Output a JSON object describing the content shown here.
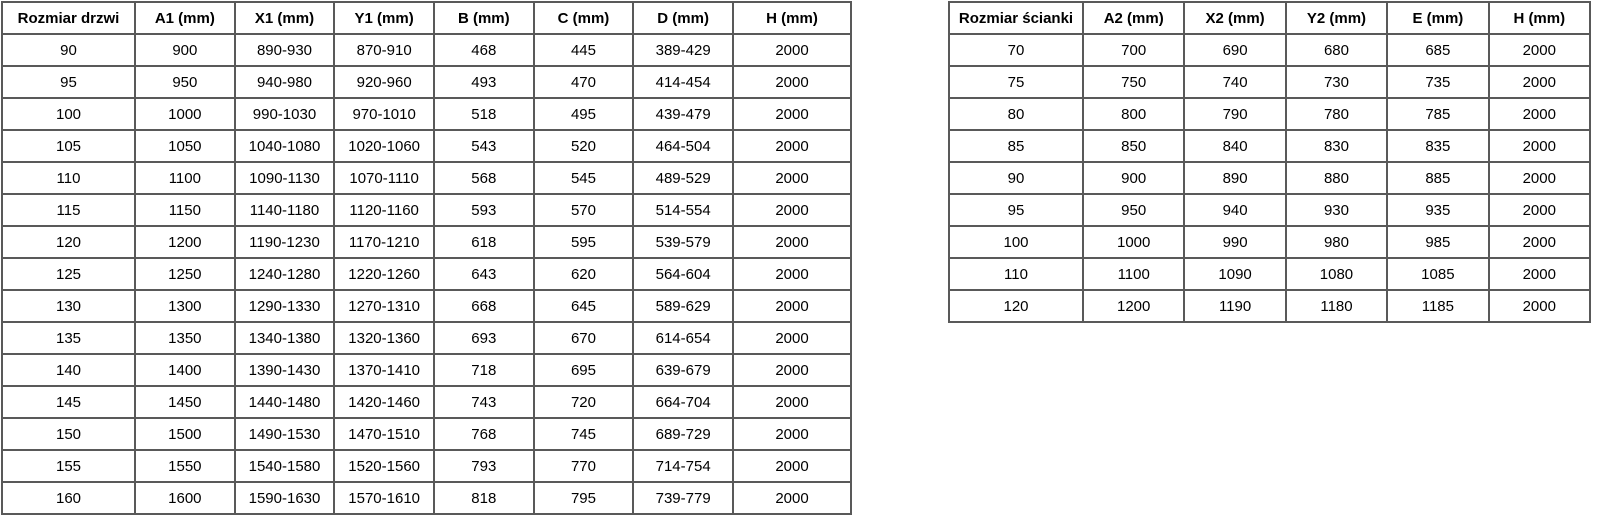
{
  "door_table": {
    "name": "door-size-table",
    "headers": [
      "Rozmiar drzwi",
      "A1 (mm)",
      "X1 (mm)",
      "Y1 (mm)",
      "B (mm)",
      "C (mm)",
      "D (mm)",
      "H (mm)"
    ],
    "rows": [
      [
        "90",
        "900",
        "890-930",
        "870-910",
        "468",
        "445",
        "389-429",
        "2000"
      ],
      [
        "95",
        "950",
        "940-980",
        "920-960",
        "493",
        "470",
        "414-454",
        "2000"
      ],
      [
        "100",
        "1000",
        "990-1030",
        "970-1010",
        "518",
        "495",
        "439-479",
        "2000"
      ],
      [
        "105",
        "1050",
        "1040-1080",
        "1020-1060",
        "543",
        "520",
        "464-504",
        "2000"
      ],
      [
        "110",
        "1100",
        "1090-1130",
        "1070-1110",
        "568",
        "545",
        "489-529",
        "2000"
      ],
      [
        "115",
        "1150",
        "1140-1180",
        "1120-1160",
        "593",
        "570",
        "514-554",
        "2000"
      ],
      [
        "120",
        "1200",
        "1190-1230",
        "1170-1210",
        "618",
        "595",
        "539-579",
        "2000"
      ],
      [
        "125",
        "1250",
        "1240-1280",
        "1220-1260",
        "643",
        "620",
        "564-604",
        "2000"
      ],
      [
        "130",
        "1300",
        "1290-1330",
        "1270-1310",
        "668",
        "645",
        "589-629",
        "2000"
      ],
      [
        "135",
        "1350",
        "1340-1380",
        "1320-1360",
        "693",
        "670",
        "614-654",
        "2000"
      ],
      [
        "140",
        "1400",
        "1390-1430",
        "1370-1410",
        "718",
        "695",
        "639-679",
        "2000"
      ],
      [
        "145",
        "1450",
        "1440-1480",
        "1420-1460",
        "743",
        "720",
        "664-704",
        "2000"
      ],
      [
        "150",
        "1500",
        "1490-1530",
        "1470-1510",
        "768",
        "745",
        "689-729",
        "2000"
      ],
      [
        "155",
        "1550",
        "1540-1580",
        "1520-1560",
        "793",
        "770",
        "714-754",
        "2000"
      ],
      [
        "160",
        "1600",
        "1590-1630",
        "1570-1610",
        "818",
        "795",
        "739-779",
        "2000"
      ]
    ]
  },
  "wall_table": {
    "name": "wall-size-table",
    "headers": [
      "Rozmiar ścianki",
      "A2 (mm)",
      "X2 (mm)",
      "Y2 (mm)",
      "E (mm)",
      "H (mm)"
    ],
    "rows": [
      [
        "70",
        "700",
        "690",
        "680",
        "685",
        "2000"
      ],
      [
        "75",
        "750",
        "740",
        "730",
        "735",
        "2000"
      ],
      [
        "80",
        "800",
        "790",
        "780",
        "785",
        "2000"
      ],
      [
        "85",
        "850",
        "840",
        "830",
        "835",
        "2000"
      ],
      [
        "90",
        "900",
        "890",
        "880",
        "885",
        "2000"
      ],
      [
        "95",
        "950",
        "940",
        "930",
        "935",
        "2000"
      ],
      [
        "100",
        "1000",
        "990",
        "980",
        "985",
        "2000"
      ],
      [
        "110",
        "1100",
        "1090",
        "1080",
        "1085",
        "2000"
      ],
      [
        "120",
        "1200",
        "1190",
        "1180",
        "1185",
        "2000"
      ]
    ]
  },
  "colors": {
    "border": "#595959",
    "text": "#000000",
    "background": "#ffffff"
  }
}
